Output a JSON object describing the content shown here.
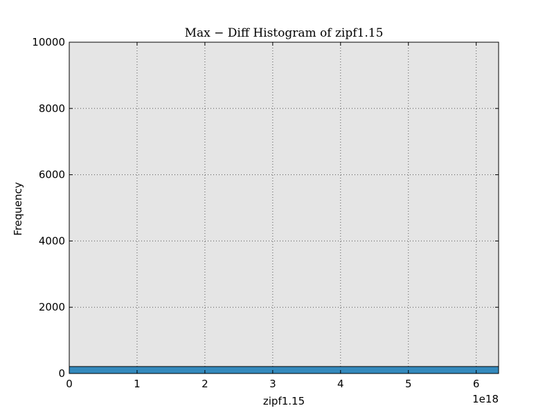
{
  "chart_data": {
    "type": "bar",
    "title": "Max − Diff Histogram of zipf1.15",
    "xlabel": "zipf1.15",
    "ylabel": "Frequency",
    "x_offset_label": "1e18",
    "xlim": [
      0,
      6.33
    ],
    "ylim": [
      0,
      10000
    ],
    "x_ticks": [
      0,
      1,
      2,
      3,
      4,
      5,
      6
    ],
    "x_tick_labels": [
      "0",
      "1",
      "2",
      "3",
      "4",
      "5",
      "6"
    ],
    "y_ticks": [
      0,
      2000,
      4000,
      6000,
      8000,
      10000
    ],
    "y_tick_labels": [
      "0",
      "2000",
      "4000",
      "6000",
      "8000",
      "10000"
    ],
    "grid": true,
    "bars": [
      {
        "x_start": 0,
        "x_end": 6.33,
        "value": 210
      }
    ],
    "colors": {
      "background": "#e5e5e5",
      "bar": "#348abd",
      "grid": "#555555"
    }
  }
}
